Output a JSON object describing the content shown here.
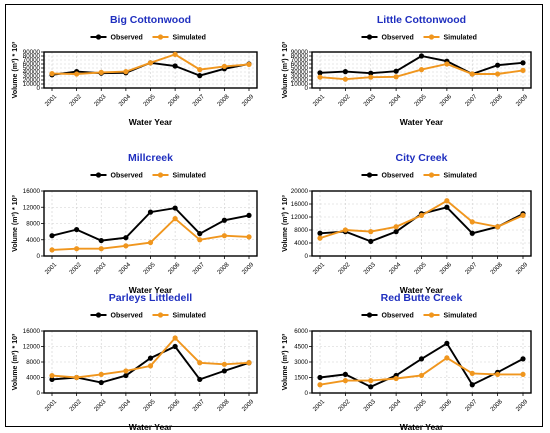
{
  "legend": {
    "observed_label": "Observed",
    "simulated_label": "Simulated"
  },
  "colors": {
    "observed": "#000000",
    "simulated": "#f0961e",
    "title": "#1f2fbf"
  },
  "chart_data": [
    {
      "type": "line",
      "title": "Big Cottonwood",
      "xlabel": "Water Year",
      "ylabel": "Volume (m³) * 10³",
      "x": [
        "2001",
        "2002",
        "2003",
        "2004",
        "2005",
        "2006",
        "2007",
        "2008",
        "2009"
      ],
      "ylim": [
        0,
        90000
      ],
      "yticks": [
        "0",
        "10000",
        "20000",
        "30000",
        "40000",
        "50000",
        "60000",
        "70000",
        "80000",
        "90000"
      ],
      "series": [
        {
          "name": "Observed",
          "values": [
            33000,
            41000,
            37000,
            38000,
            63000,
            55000,
            31000,
            48000,
            60000
          ]
        },
        {
          "name": "Simulated",
          "values": [
            36000,
            35000,
            39000,
            41000,
            63000,
            84000,
            46000,
            54000,
            59000
          ]
        }
      ]
    },
    {
      "type": "line",
      "title": "Little Cottonwood",
      "xlabel": "Water Year",
      "ylabel": "Volume (m³) * 10³",
      "x": [
        "2001",
        "2002",
        "2003",
        "2004",
        "2005",
        "2006",
        "2007",
        "2008",
        "2009"
      ],
      "ylim": [
        0,
        90000
      ],
      "yticks": [
        "0",
        "10000",
        "20000",
        "30000",
        "40000",
        "50000",
        "60000",
        "70000",
        "80000",
        "90000"
      ],
      "series": [
        {
          "name": "Observed",
          "values": [
            38000,
            41000,
            37000,
            42000,
            80000,
            67000,
            35000,
            57000,
            63000
          ]
        },
        {
          "name": "Simulated",
          "values": [
            27000,
            22000,
            27000,
            28000,
            46000,
            60000,
            35000,
            35000,
            44000
          ]
        }
      ]
    },
    {
      "type": "line",
      "title": "Millcreek",
      "xlabel": "Water Year",
      "ylabel": "Volume (m³) * 10³",
      "x": [
        "2001",
        "2002",
        "2003",
        "2004",
        "2005",
        "2006",
        "2007",
        "2008",
        "2009"
      ],
      "ylim": [
        0,
        16000
      ],
      "yticks": [
        "0",
        "4000",
        "8000",
        "12000",
        "16000"
      ],
      "series": [
        {
          "name": "Observed",
          "values": [
            5000,
            6500,
            3800,
            4500,
            10800,
            11800,
            5500,
            8800,
            10000
          ]
        },
        {
          "name": "Simulated",
          "values": [
            1500,
            1800,
            1800,
            2500,
            3300,
            9200,
            4000,
            5000,
            4700
          ]
        }
      ]
    },
    {
      "type": "line",
      "title": "City Creek",
      "xlabel": "Water Year",
      "ylabel": "Volume (m³) * 10³",
      "x": [
        "2001",
        "2002",
        "2003",
        "2004",
        "2005",
        "2006",
        "2007",
        "2008",
        "2009"
      ],
      "ylim": [
        0,
        20000
      ],
      "yticks": [
        "0",
        "4000",
        "8000",
        "12000",
        "16000",
        "20000"
      ],
      "series": [
        {
          "name": "Observed",
          "values": [
            7000,
            7500,
            4500,
            7500,
            13000,
            15000,
            7000,
            9000,
            13000
          ]
        },
        {
          "name": "Simulated",
          "values": [
            5500,
            8000,
            7500,
            9000,
            12500,
            17000,
            10500,
            9000,
            12500
          ]
        }
      ]
    },
    {
      "type": "line",
      "title": "Parleys Littledell",
      "xlabel": "Water Year",
      "ylabel": "Volume (m³) * 10³",
      "x": [
        "2001",
        "2002",
        "2003",
        "2004",
        "2005",
        "2006",
        "2007",
        "2008",
        "2009"
      ],
      "ylim": [
        0,
        16000
      ],
      "yticks": [
        "0",
        "4000",
        "8000",
        "12000",
        "16000"
      ],
      "series": [
        {
          "name": "Observed",
          "values": [
            3500,
            4000,
            2700,
            4500,
            9000,
            12000,
            3500,
            5700,
            7800
          ]
        },
        {
          "name": "Simulated",
          "values": [
            4500,
            4000,
            4800,
            5700,
            7000,
            14200,
            7800,
            7400,
            7800
          ]
        }
      ]
    },
    {
      "type": "line",
      "title": "Red Butte Creek",
      "xlabel": "Water Year",
      "ylabel": "Volume (m³) * 10³",
      "x": [
        "2001",
        "2002",
        "2003",
        "2004",
        "2005",
        "2006",
        "2007",
        "2008",
        "2009"
      ],
      "ylim": [
        0,
        6000
      ],
      "yticks": [
        "0",
        "1500",
        "3000",
        "4500",
        "6000"
      ],
      "series": [
        {
          "name": "Observed",
          "values": [
            1500,
            1800,
            600,
            1700,
            3300,
            4800,
            800,
            2000,
            3300
          ]
        },
        {
          "name": "Simulated",
          "values": [
            800,
            1200,
            1200,
            1400,
            1700,
            3400,
            1900,
            1800,
            1800
          ]
        }
      ]
    }
  ]
}
